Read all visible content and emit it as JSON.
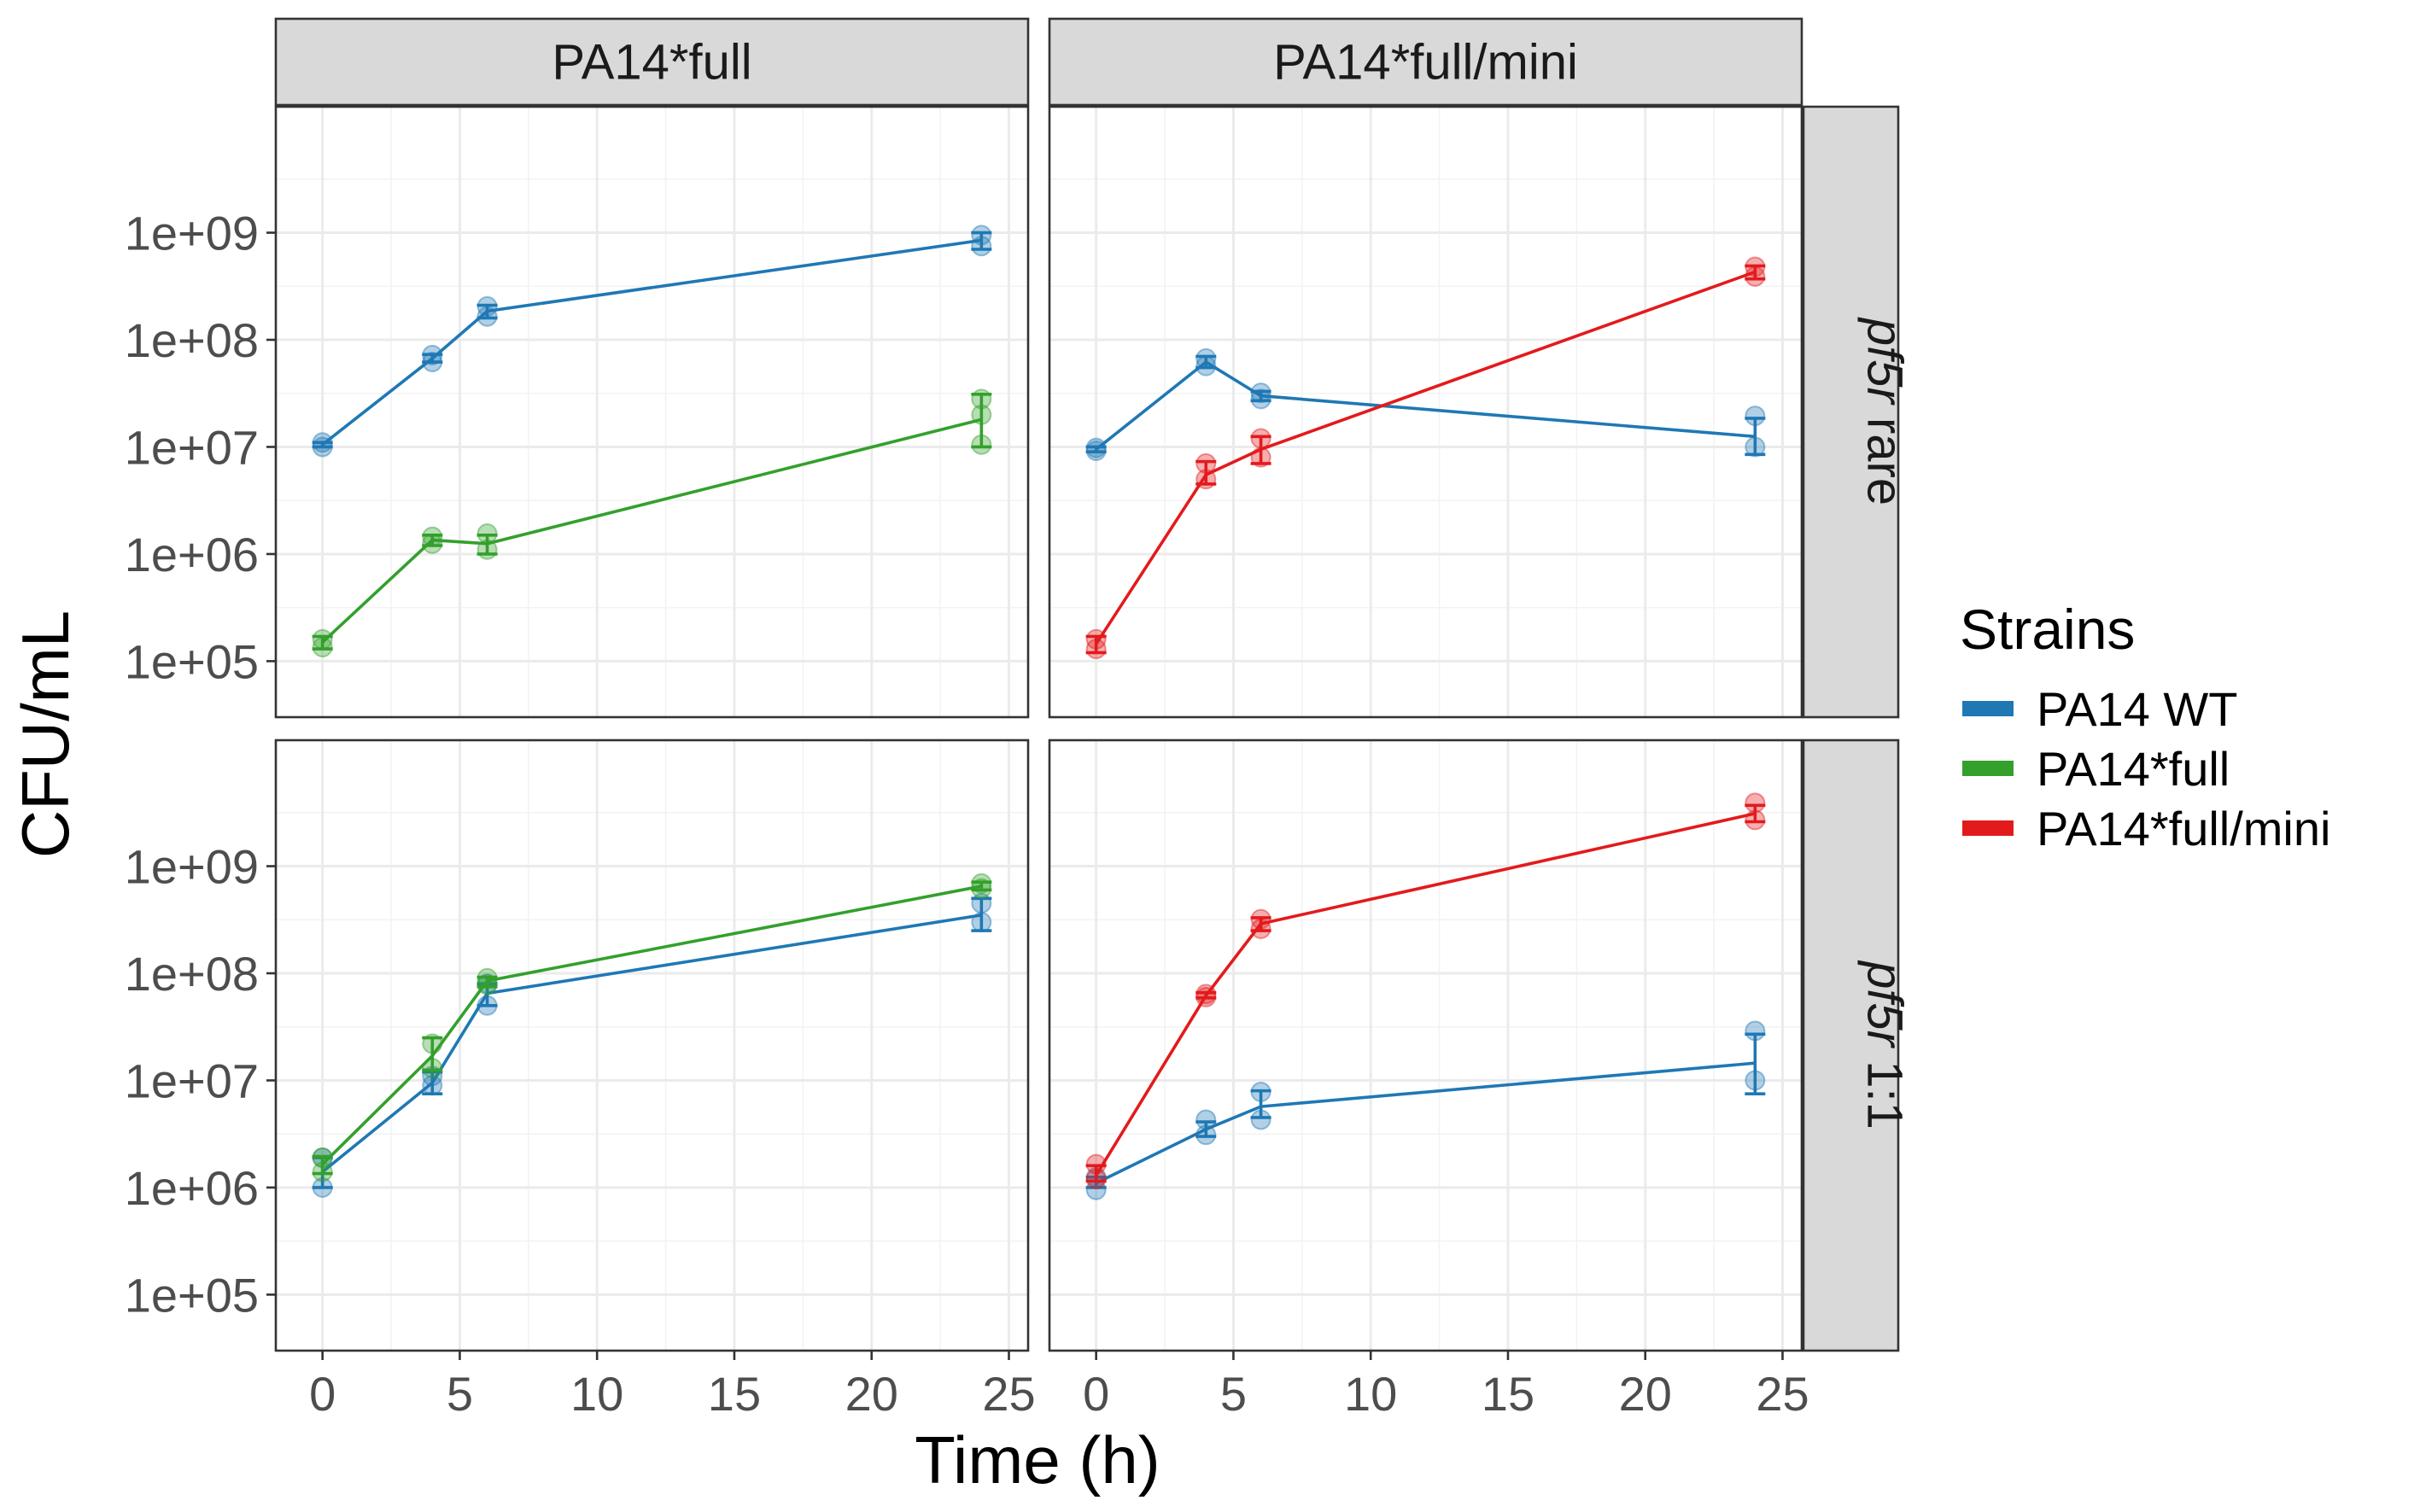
{
  "chart_data": {
    "type": "line",
    "facet_cols": [
      "PA14*full",
      "PA14*full/mini"
    ],
    "facet_rows": [
      {
        "italic": "pf5r",
        "rest": " rare"
      },
      {
        "italic": "pf5r",
        "rest": " 1:1"
      }
    ],
    "xlabel": "Time (h)",
    "ylabel": "CFU/mL",
    "xlim": [
      -1.7,
      25.7
    ],
    "xticks": [
      0,
      5,
      10,
      15,
      20,
      25
    ],
    "xtick_labels": [
      "0",
      "5",
      "10",
      "15",
      "20",
      "25"
    ],
    "yscale": "log10",
    "ylim": [
      30000,
      15000000000
    ],
    "yticks": [
      100000,
      1000000,
      10000000,
      100000000,
      1000000000
    ],
    "ytick_labels": [
      "1e+05",
      "1e+06",
      "1e+07",
      "1e+08",
      "1e+09"
    ],
    "grid": true,
    "legend": {
      "title": "Strains",
      "position": "right",
      "entries": [
        {
          "name": "PA14 WT",
          "color": "#1f78b4"
        },
        {
          "name": "PA14*full",
          "color": "#33a02c"
        },
        {
          "name": "PA14*full/mini",
          "color": "#e31a1c"
        }
      ]
    },
    "panels": [
      {
        "col": 0,
        "row": 0,
        "series": [
          {
            "name": "PA14 WT",
            "color": "#1f78b4",
            "x": [
              0,
              4,
              6,
              24
            ],
            "y": [
              10500000,
              67000000,
              185000000,
              850000000
            ],
            "lower": [
              10000000,
              62000000,
              160000000,
              700000000
            ],
            "upper": [
              11000000,
              73000000,
              210000000,
              1000000000
            ],
            "reps": [
              [
                10000000,
                11000000
              ],
              [
                62000000,
                72000000
              ],
              [
                165000000,
                205000000
              ],
              [
                750000000,
                950000000
              ]
            ]
          },
          {
            "name": "PA14*full",
            "color": "#33a02c",
            "x": [
              0,
              4,
              6,
              24
            ],
            "y": [
              150000,
              1350000,
              1250000,
              18000000
            ],
            "lower": [
              130000,
              1200000,
              1000000,
              10000000
            ],
            "upper": [
              170000,
              1500000,
              1500000,
              31000000
            ],
            "reps": [
              [
                135000,
                160000
              ],
              [
                1250000,
                1450000
              ],
              [
                1100000,
                1550000
              ],
              [
                10500000,
                20000000,
                28000000
              ]
            ]
          }
        ]
      },
      {
        "col": 1,
        "row": 0,
        "series": [
          {
            "name": "PA14 WT",
            "color": "#1f78b4",
            "x": [
              0,
              4,
              6,
              24
            ],
            "y": [
              9500000,
              62000000,
              30000000,
              12500000
            ],
            "lower": [
              9000000,
              55000000,
              27000000,
              8500000
            ],
            "upper": [
              10000000,
              70000000,
              33000000,
              18500000
            ],
            "reps": [
              [
                9200000,
                9800000
              ],
              [
                57000000,
                67000000
              ],
              [
                28000000,
                32000000
              ],
              [
                10000000,
                19500000
              ]
            ]
          },
          {
            "name": "PA14*full/mini",
            "color": "#e31a1c",
            "x": [
              0,
              4,
              6,
              24
            ],
            "y": [
              145000,
              5500000,
              9500000,
              430000000
            ],
            "lower": [
              120000,
              4500000,
              7000000,
              370000000
            ],
            "upper": [
              170000,
              7300000,
              12500000,
              490000000
            ],
            "reps": [
              [
                130000,
                160000
              ],
              [
                5000000,
                7000000
              ],
              [
                8000000,
                12000000
              ],
              [
                390000000,
                480000000
              ]
            ]
          }
        ]
      },
      {
        "col": 0,
        "row": 1,
        "series": [
          {
            "name": "PA14 WT",
            "color": "#1f78b4",
            "x": [
              0,
              4,
              6,
              24
            ],
            "y": [
              1400000,
              9500000,
              65000000,
              350000000
            ],
            "lower": [
              1000000,
              7500000,
              50000000,
              250000000
            ],
            "upper": [
              1900000,
              12000000,
              80000000,
              500000000
            ],
            "reps": [
              [
                1000000,
                1900000
              ],
              [
                9000000,
                11000000
              ],
              [
                50000000,
                80000000
              ],
              [
                300000000,
                450000000
              ]
            ]
          },
          {
            "name": "PA14*full",
            "color": "#33a02c",
            "x": [
              0,
              4,
              6,
              24
            ],
            "y": [
              1650000,
              17000000,
              85000000,
              650000000
            ],
            "lower": [
              1350000,
              12500000,
              75000000,
              600000000
            ],
            "upper": [
              1950000,
              25000000,
              92000000,
              710000000
            ],
            "reps": [
              [
                1400000,
                1900000
              ],
              [
                13000000,
                22000000
              ],
              [
                78000000,
                90000000
              ],
              [
                620000000,
                690000000
              ]
            ]
          }
        ]
      },
      {
        "col": 1,
        "row": 1,
        "series": [
          {
            "name": "PA14 WT",
            "color": "#1f78b4",
            "x": [
              0,
              4,
              6,
              24
            ],
            "y": [
              1100000,
              3500000,
              5700000,
              14500000
            ],
            "lower": [
              1000000,
              3000000,
              4500000,
              7500000
            ],
            "upper": [
              1250000,
              4100000,
              8000000,
              27000000
            ],
            "reps": [
              [
                950000,
                1250000
              ],
              [
                3100000,
                4300000
              ],
              [
                4300000,
                7800000
              ],
              [
                10000000,
                29000000
              ]
            ]
          },
          {
            "name": "PA14*full/mini",
            "color": "#e31a1c",
            "x": [
              0,
              4,
              6,
              24
            ],
            "y": [
              1300000,
              62000000,
              290000000,
              3100000000
            ],
            "lower": [
              1150000,
              59000000,
              250000000,
              2600000000
            ],
            "upper": [
              1600000,
              66000000,
              330000000,
              3700000000
            ],
            "reps": [
              [
                1200000,
                1650000
              ],
              [
                60000000,
                64000000
              ],
              [
                260000000,
                320000000
              ],
              [
                2700000000,
                3900000000
              ]
            ]
          }
        ]
      }
    ]
  }
}
